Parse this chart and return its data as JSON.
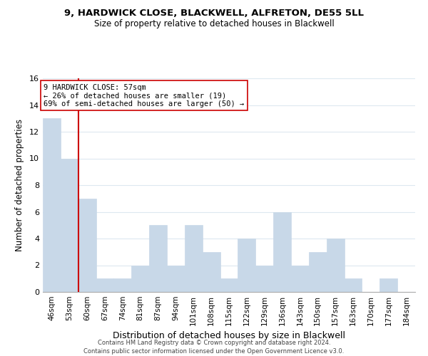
{
  "title": "9, HARDWICK CLOSE, BLACKWELL, ALFRETON, DE55 5LL",
  "subtitle": "Size of property relative to detached houses in Blackwell",
  "xlabel": "Distribution of detached houses by size in Blackwell",
  "ylabel": "Number of detached properties",
  "bar_color": "#c8d8e8",
  "bar_edge_color": "#c8d8e8",
  "categories": [
    "46sqm",
    "53sqm",
    "60sqm",
    "67sqm",
    "74sqm",
    "81sqm",
    "87sqm",
    "94sqm",
    "101sqm",
    "108sqm",
    "115sqm",
    "122sqm",
    "129sqm",
    "136sqm",
    "143sqm",
    "150sqm",
    "157sqm",
    "163sqm",
    "170sqm",
    "177sqm",
    "184sqm"
  ],
  "values": [
    13,
    10,
    7,
    1,
    1,
    2,
    5,
    2,
    5,
    3,
    1,
    4,
    2,
    6,
    2,
    3,
    4,
    1,
    0,
    1,
    0
  ],
  "ylim": [
    0,
    16
  ],
  "yticks": [
    0,
    2,
    4,
    6,
    8,
    10,
    12,
    14,
    16
  ],
  "property_line_color": "#cc0000",
  "annotation_line1": "9 HARDWICK CLOSE: 57sqm",
  "annotation_line2": "← 26% of detached houses are smaller (19)",
  "annotation_line3": "69% of semi-detached houses are larger (50) →",
  "annotation_box_color": "#ffffff",
  "annotation_box_edge_color": "#cc0000",
  "footer_line1": "Contains HM Land Registry data © Crown copyright and database right 2024.",
  "footer_line2": "Contains public sector information licensed under the Open Government Licence v3.0.",
  "background_color": "#ffffff",
  "grid_color": "#dde8f0",
  "title_fontsize": 9.5,
  "subtitle_fontsize": 8.5
}
